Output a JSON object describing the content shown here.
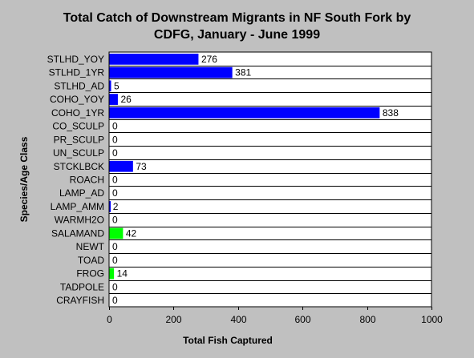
{
  "chart_data": {
    "type": "bar",
    "orientation": "horizontal",
    "title": "Total Catch of Downstream Migrants in NF South Fork by CDFG, January - June 1999",
    "title_lines": [
      "Total Catch of Downstream Migrants in NF South Fork by",
      "CDFG, January - June 1999"
    ],
    "xlabel": "Total Fish Captured",
    "ylabel": "Species/Age Class",
    "xlim": [
      0,
      1000
    ],
    "xticks": [
      0,
      200,
      400,
      600,
      800,
      1000
    ],
    "grid": true,
    "categories": [
      "STLHD_YOY",
      "STLHD_1YR",
      "STLHD_AD",
      "COHO_YOY",
      "COHO_1YR",
      "CO_SCULP",
      "PR_SCULP",
      "UN_SCULP",
      "STCKLBCK",
      "ROACH",
      "LAMP_AD",
      "LAMP_AMM",
      "WARMH2O",
      "SALAMAND",
      "NEWT",
      "TOAD",
      "FROG",
      "TADPOLE",
      "CRAYFISH"
    ],
    "values": [
      276,
      381,
      5,
      26,
      838,
      0,
      0,
      0,
      73,
      0,
      0,
      2,
      0,
      42,
      0,
      0,
      14,
      0,
      0
    ],
    "bar_colors": [
      "#0000ff",
      "#0000ff",
      "#0000ff",
      "#0000ff",
      "#0000ff",
      "#0000ff",
      "#0000ff",
      "#0000ff",
      "#0000ff",
      "#0000ff",
      "#0000ff",
      "#0000ff",
      "#0000ff",
      "#00ff00",
      "#00ff00",
      "#00ff00",
      "#00ff00",
      "#00ff00",
      "#00ff00"
    ],
    "background_color": "#c0c0c0",
    "plot_background": "#ffffff"
  }
}
